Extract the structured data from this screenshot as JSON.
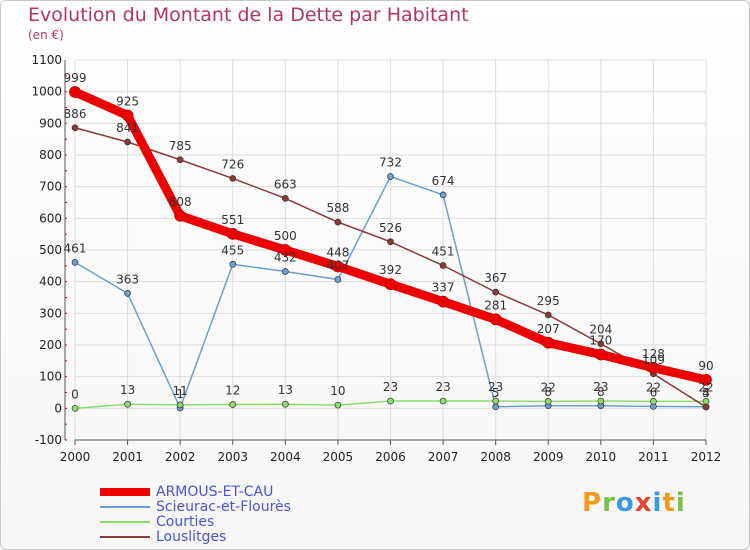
{
  "header": {
    "title": "Evolution du Montant de la Dette par Habitant",
    "unit": "(en €)"
  },
  "logo": {
    "text": "Proxiti",
    "letters": [
      "P",
      "r",
      "o",
      "x",
      "i",
      "t",
      "i"
    ],
    "colors": [
      "#f29a1d",
      "#7bc043",
      "#3a9ad9",
      "#e8432e",
      "#3a9ad9",
      "#f29a1d",
      "#7bc043"
    ]
  },
  "chart_data": {
    "type": "line",
    "title": "Evolution du Montant de la Dette par Habitant",
    "subtitle": "(en €)",
    "x": [
      2000,
      2001,
      2002,
      2003,
      2004,
      2005,
      2006,
      2007,
      2008,
      2009,
      2010,
      2011,
      2012
    ],
    "ylim": [
      -100,
      1100
    ],
    "yticks": [
      -100,
      0,
      100,
      200,
      300,
      400,
      500,
      600,
      700,
      800,
      900,
      1000,
      1100
    ],
    "grid": true,
    "legend_position": "bottom-left",
    "series": [
      {
        "name": "ARMOUS-ET-CAU",
        "color": "#ee0000",
        "values": [
          999,
          925,
          608,
          551,
          500,
          448,
          392,
          337,
          281,
          207,
          170,
          128,
          90
        ],
        "labels": [
          "999",
          "925",
          "608",
          "551",
          "500",
          "448",
          "392",
          "337",
          "281",
          "207",
          "170",
          "128",
          "90"
        ]
      },
      {
        "name": "Scieurac-et-Flourès",
        "color": "#6a9fd2",
        "values": [
          461,
          363,
          1,
          455,
          432,
          407,
          732,
          674,
          5,
          8,
          8,
          6,
          5
        ],
        "labels": [
          "461",
          "363",
          "1",
          "455",
          "432",
          "407",
          "732",
          "674",
          "5",
          "8",
          "8",
          "6",
          "5"
        ]
      },
      {
        "name": "Courties",
        "color": "#8fdc6e",
        "values": [
          0,
          13,
          11,
          12,
          13,
          10,
          23,
          23,
          23,
          22,
          23,
          22,
          22
        ],
        "labels": [
          "0",
          "13",
          "11",
          "12",
          "13",
          "10",
          "23",
          "23",
          "23",
          "22",
          "23",
          "22",
          "22"
        ]
      },
      {
        "name": "Louslitges",
        "color": "#8b3a3a",
        "values": [
          886,
          841,
          785,
          726,
          663,
          588,
          526,
          451,
          367,
          295,
          204,
          109,
          4
        ],
        "labels": [
          "886",
          "841",
          "785",
          "726",
          "663",
          "588",
          "526",
          "451",
          "367",
          "295",
          "204",
          "109",
          "4"
        ]
      }
    ]
  }
}
